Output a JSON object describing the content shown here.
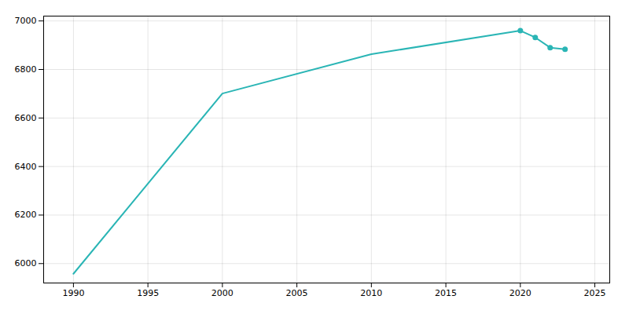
{
  "chart_data": {
    "type": "line",
    "series": [
      {
        "type": "line",
        "color": "#2ab5b5",
        "x": [
          1990,
          2000,
          2010,
          2020,
          2021,
          2022,
          2023
        ],
        "values": [
          5958,
          6701,
          6863,
          6960,
          6932,
          6890,
          6883
        ]
      },
      {
        "type": "scatter",
        "color": "#2ab5b5",
        "marker": "circle",
        "x": [
          2020,
          2021,
          2022,
          2023
        ],
        "values": [
          6960,
          6932,
          6890,
          6883
        ]
      }
    ],
    "xlim": [
      1988,
      2026
    ],
    "xticks": [
      1990,
      1995,
      2000,
      2005,
      2010,
      2015,
      2020,
      2025
    ],
    "ylim": [
      5920,
      7020
    ],
    "yticks": [
      6000,
      6200,
      6400,
      6600,
      6800,
      7000
    ],
    "grid": true
  }
}
